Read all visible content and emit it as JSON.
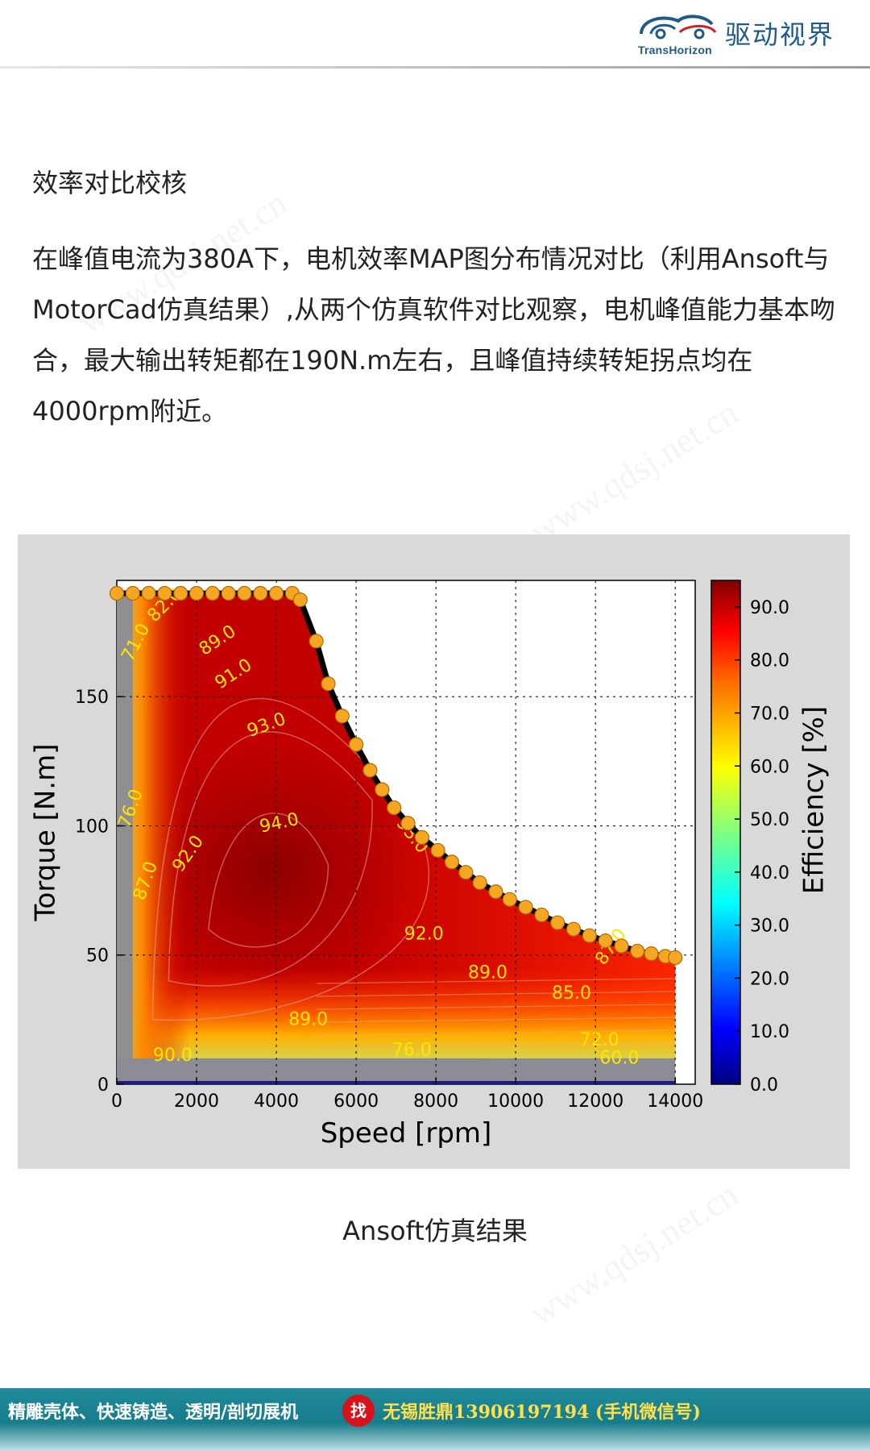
{
  "header": {
    "logo_en": "TransHorizon",
    "logo_cn": "驱动视界"
  },
  "article": {
    "section_title": "效率对比校核",
    "paragraph": "在峰值电流为380A下，电机效率MAP图分布情况对比（利用Ansoft与MotorCad仿真结果）,从两个仿真软件对比观察，电机峰值能力基本吻合，最大输出转矩都在190N.m左右，且峰值持续转矩拐点均在4000rpm附近。",
    "caption": "Ansoft仿真结果"
  },
  "watermark": "www.qdsj.net.cn",
  "footer": {
    "left_text": "精雕壳体、快速铸造、透明/剖切展机",
    "badge": "找",
    "right_text": "无锡胜鼎13906197194 (手机微信号)"
  },
  "colors": {
    "footer_bg": "#177c8c",
    "footer_highlight": "#ffe14d",
    "badge_red": "#d8121b",
    "envelope_marker": "#f5a623"
  },
  "chart_data": {
    "type": "heatmap",
    "title": "",
    "xlabel": "Speed [rpm]",
    "ylabel": "Torque [N.m]",
    "colorbar_label": "Efficiency [%]",
    "xlim": [
      0,
      14500
    ],
    "ylim": [
      0,
      195
    ],
    "x_ticks": [
      0,
      2000,
      4000,
      6000,
      8000,
      10000,
      12000,
      14000
    ],
    "x_tick_labels": [
      "0",
      "2000",
      "4000",
      "6000",
      "8000",
      "10000",
      "12000",
      "14000"
    ],
    "y_ticks": [
      0,
      50,
      100,
      150
    ],
    "y_tick_labels": [
      "0",
      "50",
      "100",
      "150"
    ],
    "colorbar_range": [
      0,
      95
    ],
    "colorbar_ticks": [
      0,
      10,
      20,
      30,
      40,
      50,
      60,
      70,
      80,
      90
    ],
    "colorbar_tick_labels": [
      "0.0",
      "10.0",
      "20.0",
      "30.0",
      "40.0",
      "50.0",
      "60.0",
      "70.0",
      "80.0",
      "90.0"
    ],
    "grid": true,
    "torque_speed_envelope": {
      "speed": [
        0,
        400,
        800,
        1200,
        1600,
        2000,
        2400,
        2800,
        3200,
        3600,
        4000,
        4400,
        4600,
        5000,
        5300,
        5650,
        6000,
        6350,
        6650,
        6950,
        7300,
        7650,
        8050,
        8400,
        8750,
        9100,
        9500,
        9850,
        10250,
        10650,
        11050,
        11450,
        11850,
        12250,
        12650,
        13050,
        13400,
        13750,
        14000
      ],
      "torque": [
        190,
        190,
        190,
        190,
        190,
        190,
        190,
        190,
        190,
        190,
        190,
        190,
        187.5,
        171.5,
        155,
        142.5,
        131.5,
        121.5,
        114,
        107,
        101,
        95.5,
        90.5,
        86,
        82,
        78,
        74.5,
        71.5,
        68.5,
        65.5,
        62.5,
        60,
        57.5,
        55.5,
        53.5,
        51.5,
        50.5,
        49.5,
        49
      ]
    },
    "contour_labels": [
      {
        "text": "71.0",
        "speed": 600,
        "torque": 170,
        "angle": -62
      },
      {
        "text": "82.0",
        "speed": 1300,
        "torque": 184,
        "angle": -45
      },
      {
        "text": "89.0",
        "speed": 2600,
        "torque": 170,
        "angle": -33
      },
      {
        "text": "91.0",
        "speed": 3000,
        "torque": 157,
        "angle": -33
      },
      {
        "text": "93.0",
        "speed": 3800,
        "torque": 137,
        "angle": -20
      },
      {
        "text": "94.0",
        "speed": 4100,
        "torque": 99,
        "angle": -12
      },
      {
        "text": "76.0",
        "speed": 480,
        "torque": 106,
        "angle": -70
      },
      {
        "text": "92.0",
        "speed": 1900,
        "torque": 88,
        "angle": -55
      },
      {
        "text": "87.0",
        "speed": 850,
        "torque": 78,
        "angle": -70
      },
      {
        "text": "93.0",
        "speed": 7300,
        "torque": 95,
        "angle": 52
      },
      {
        "text": "92.0",
        "speed": 7700,
        "torque": 56,
        "angle": 0
      },
      {
        "text": "89.0",
        "speed": 9300,
        "torque": 41,
        "angle": 0
      },
      {
        "text": "87.0",
        "speed": 12500,
        "torque": 52,
        "angle": -55
      },
      {
        "text": "85.0",
        "speed": 11400,
        "torque": 33,
        "angle": 0
      },
      {
        "text": "89.0",
        "speed": 4800,
        "torque": 23,
        "angle": 0
      },
      {
        "text": "72.0",
        "speed": 12100,
        "torque": 15,
        "angle": 0
      },
      {
        "text": "60.0",
        "speed": 12600,
        "torque": 8,
        "angle": 0
      },
      {
        "text": "76.0",
        "speed": 7400,
        "torque": 11,
        "angle": 0
      },
      {
        "text": "90.0",
        "speed": 1400,
        "torque": 9,
        "angle": 0
      }
    ]
  }
}
